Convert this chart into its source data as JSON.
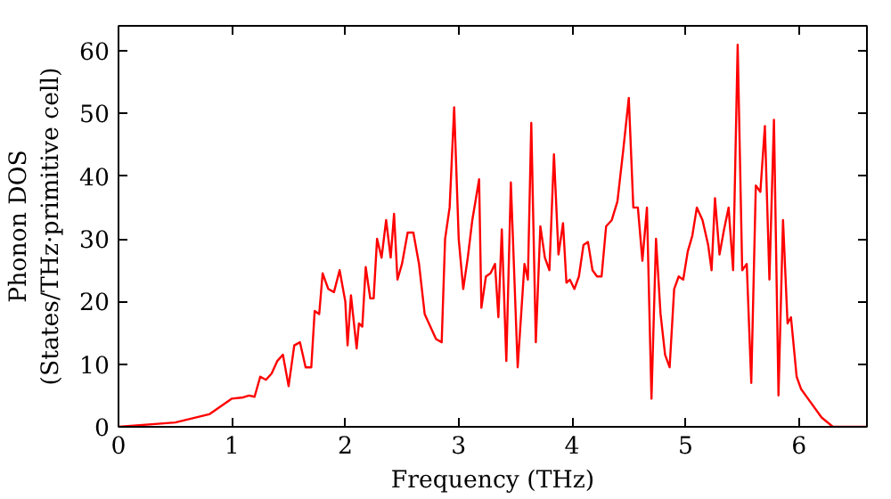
{
  "chart_data": {
    "type": "line",
    "xlabel": "Frequency (THz)",
    "ylabel": "Phonon DOS\n(States/THz·primitive cell)",
    "xlim": [
      0,
      6.6
    ],
    "ylim": [
      0,
      64
    ],
    "xticks": [
      0,
      1,
      2,
      3,
      4,
      5,
      6
    ],
    "yticks": [
      0,
      10,
      20,
      30,
      40,
      50,
      60
    ],
    "grid": false,
    "marker": "none",
    "line_style": "solid",
    "series": [
      {
        "color": "#ff0000",
        "x": [
          0,
          0.5,
          0.8,
          1.0,
          1.1,
          1.15,
          1.2,
          1.25,
          1.3,
          1.35,
          1.4,
          1.45,
          1.5,
          1.55,
          1.6,
          1.65,
          1.7,
          1.73,
          1.77,
          1.8,
          1.85,
          1.9,
          1.95,
          2.0,
          2.02,
          2.05,
          2.1,
          2.12,
          2.15,
          2.18,
          2.22,
          2.25,
          2.28,
          2.32,
          2.36,
          2.4,
          2.43,
          2.46,
          2.5,
          2.55,
          2.6,
          2.65,
          2.7,
          2.8,
          2.85,
          2.88,
          2.92,
          2.96,
          3.0,
          3.04,
          3.08,
          3.12,
          3.18,
          3.2,
          3.24,
          3.28,
          3.32,
          3.35,
          3.38,
          3.42,
          3.46,
          3.52,
          3.58,
          3.61,
          3.64,
          3.68,
          3.72,
          3.76,
          3.8,
          3.84,
          3.88,
          3.92,
          3.95,
          3.98,
          4.02,
          4.06,
          4.1,
          4.14,
          4.18,
          4.22,
          4.26,
          4.3,
          4.35,
          4.4,
          4.45,
          4.5,
          4.54,
          4.58,
          4.62,
          4.66,
          4.7,
          4.74,
          4.78,
          4.82,
          4.86,
          4.9,
          4.94,
          4.98,
          5.02,
          5.06,
          5.1,
          5.15,
          5.2,
          5.23,
          5.26,
          5.3,
          5.34,
          5.38,
          5.42,
          5.46,
          5.5,
          5.54,
          5.58,
          5.62,
          5.66,
          5.7,
          5.74,
          5.78,
          5.82,
          5.86,
          5.9,
          5.93,
          5.98,
          6.02,
          6.1,
          6.2,
          6.3,
          6.6
        ],
        "values": [
          0,
          0.7,
          2,
          4.5,
          4.7,
          5,
          4.8,
          8,
          7.5,
          8.5,
          10.5,
          11.5,
          6.5,
          13,
          13.5,
          9.5,
          9.5,
          18.5,
          18,
          24.5,
          22,
          21.5,
          25,
          20,
          13,
          21,
          12.5,
          16.5,
          16,
          25.5,
          20.5,
          20.5,
          30,
          27,
          33,
          27,
          34,
          23.5,
          26,
          31,
          31,
          26,
          18,
          14,
          13.5,
          30,
          35,
          51,
          30,
          22,
          27,
          33,
          39.5,
          19,
          24,
          24.5,
          26,
          17.5,
          31.5,
          10.5,
          39,
          9.5,
          26,
          23.5,
          48.5,
          13.5,
          32,
          27,
          25,
          43.5,
          27.5,
          32.5,
          23,
          23.5,
          22,
          24,
          29,
          29.5,
          25,
          24,
          24,
          32,
          33,
          36,
          44,
          52.5,
          35,
          35,
          26.5,
          35,
          4.5,
          30,
          18,
          11.5,
          9.5,
          22,
          24,
          23.5,
          28,
          30.5,
          35,
          33,
          29,
          25,
          36.5,
          27.5,
          31.5,
          35,
          25,
          61,
          25,
          26,
          7,
          38.5,
          37.5,
          48,
          23.5,
          49,
          5,
          33,
          16.5,
          17.5,
          8,
          6,
          4,
          1.5,
          0,
          0
        ]
      }
    ]
  }
}
